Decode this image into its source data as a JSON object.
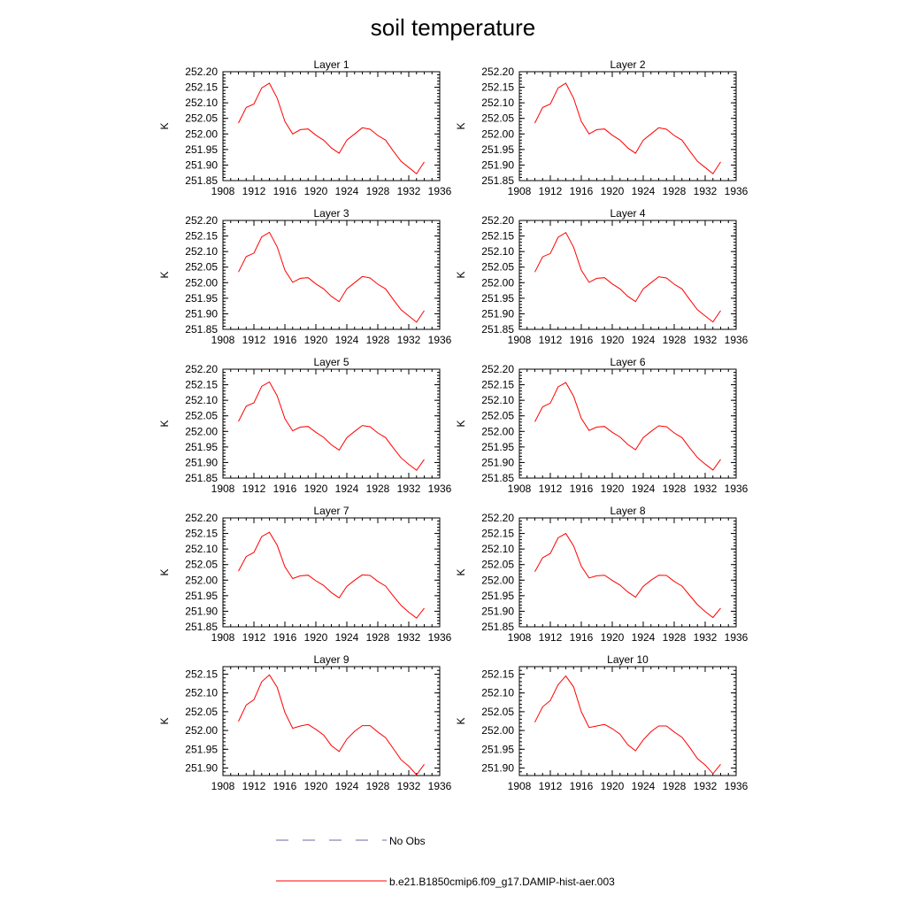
{
  "title": "soil temperature",
  "colors": {
    "model": "#ff0000",
    "obs": "#6a6aa8",
    "axis": "#000000"
  },
  "legend": {
    "obs_label": "No Obs",
    "model_label": "b.e21.B1850cmip6.f09_g17.DAMIP-hist-aer.003"
  },
  "chart_data": [
    {
      "type": "line",
      "title": "Layer 1",
      "ylabel": "K",
      "xlim": [
        1908,
        1936
      ],
      "xticks": [
        "1908",
        "1912",
        "1916",
        "1920",
        "1924",
        "1928",
        "1932",
        "1936"
      ],
      "ylim": [
        251.85,
        252.2
      ],
      "yticks": [
        "251.85",
        "251.90",
        "251.95",
        "252.00",
        "252.05",
        "252.10",
        "252.15",
        "252.20"
      ],
      "x": [
        1910,
        1911,
        1912,
        1913,
        1914,
        1915,
        1916,
        1917,
        1918,
        1919,
        1920,
        1921,
        1922,
        1923,
        1924,
        1925,
        1926,
        1927,
        1928,
        1929,
        1930,
        1931,
        1932,
        1933,
        1934
      ],
      "series": [
        {
          "name": "b.e21.B1850cmip6.f09_g17.DAMIP-hist-aer.003",
          "values": [
            252.035,
            252.085,
            252.096,
            252.148,
            252.163,
            252.115,
            252.04,
            252.0,
            252.014,
            252.016,
            251.996,
            251.98,
            251.955,
            251.938,
            251.98,
            252.0,
            252.02,
            252.015,
            251.995,
            251.98,
            251.945,
            251.912,
            251.892,
            251.872,
            251.91
          ]
        }
      ]
    },
    {
      "type": "line",
      "title": "Layer 2",
      "ylabel": "K",
      "xlim": [
        1908,
        1936
      ],
      "xticks": [
        "1908",
        "1912",
        "1916",
        "1920",
        "1924",
        "1928",
        "1932",
        "1936"
      ],
      "ylim": [
        251.85,
        252.2
      ],
      "yticks": [
        "251.85",
        "251.90",
        "251.95",
        "252.00",
        "252.05",
        "252.10",
        "252.15",
        "252.20"
      ],
      "x": [
        1910,
        1911,
        1912,
        1913,
        1914,
        1915,
        1916,
        1917,
        1918,
        1919,
        1920,
        1921,
        1922,
        1923,
        1924,
        1925,
        1926,
        1927,
        1928,
        1929,
        1930,
        1931,
        1932,
        1933,
        1934
      ],
      "series": [
        {
          "name": "b.e21.B1850cmip6.f09_g17.DAMIP-hist-aer.003",
          "values": [
            252.035,
            252.085,
            252.096,
            252.148,
            252.163,
            252.115,
            252.04,
            252.0,
            252.014,
            252.016,
            251.996,
            251.98,
            251.955,
            251.938,
            251.98,
            252.0,
            252.02,
            252.015,
            251.995,
            251.98,
            251.945,
            251.912,
            251.892,
            251.872,
            251.91
          ]
        }
      ]
    },
    {
      "type": "line",
      "title": "Layer 3",
      "ylabel": "K",
      "xlim": [
        1908,
        1936
      ],
      "xticks": [
        "1908",
        "1912",
        "1916",
        "1920",
        "1924",
        "1928",
        "1932",
        "1936"
      ],
      "ylim": [
        251.85,
        252.2
      ],
      "yticks": [
        "251.85",
        "251.90",
        "251.95",
        "252.00",
        "252.05",
        "252.10",
        "252.15",
        "252.20"
      ],
      "x": [
        1910,
        1911,
        1912,
        1913,
        1914,
        1915,
        1916,
        1917,
        1918,
        1919,
        1920,
        1921,
        1922,
        1923,
        1924,
        1925,
        1926,
        1927,
        1928,
        1929,
        1930,
        1931,
        1932,
        1933,
        1934
      ],
      "series": [
        {
          "name": "b.e21.B1850cmip6.f09_g17.DAMIP-hist-aer.003",
          "values": [
            252.034,
            252.084,
            252.095,
            252.147,
            252.162,
            252.115,
            252.04,
            252.001,
            252.014,
            252.016,
            251.996,
            251.98,
            251.956,
            251.939,
            251.98,
            252.0,
            252.02,
            252.015,
            251.995,
            251.98,
            251.946,
            251.913,
            251.893,
            251.873,
            251.91
          ]
        }
      ]
    },
    {
      "type": "line",
      "title": "Layer 4",
      "ylabel": "K",
      "xlim": [
        1908,
        1936
      ],
      "xticks": [
        "1908",
        "1912",
        "1916",
        "1920",
        "1924",
        "1928",
        "1932",
        "1936"
      ],
      "ylim": [
        251.85,
        252.2
      ],
      "yticks": [
        "251.85",
        "251.90",
        "251.95",
        "252.00",
        "252.05",
        "252.10",
        "252.15",
        "252.20"
      ],
      "x": [
        1910,
        1911,
        1912,
        1913,
        1914,
        1915,
        1916,
        1917,
        1918,
        1919,
        1920,
        1921,
        1922,
        1923,
        1924,
        1925,
        1926,
        1927,
        1928,
        1929,
        1930,
        1931,
        1932,
        1933,
        1934
      ],
      "series": [
        {
          "name": "b.e21.B1850cmip6.f09_g17.DAMIP-hist-aer.003",
          "values": [
            252.034,
            252.083,
            252.094,
            252.146,
            252.161,
            252.114,
            252.04,
            252.001,
            252.014,
            252.016,
            251.996,
            251.98,
            251.956,
            251.939,
            251.98,
            252.0,
            252.019,
            252.015,
            251.995,
            251.98,
            251.946,
            251.913,
            251.893,
            251.874,
            251.91
          ]
        }
      ]
    },
    {
      "type": "line",
      "title": "Layer 5",
      "ylabel": "K",
      "xlim": [
        1908,
        1936
      ],
      "xticks": [
        "1908",
        "1912",
        "1916",
        "1920",
        "1924",
        "1928",
        "1932",
        "1936"
      ],
      "ylim": [
        251.85,
        252.2
      ],
      "yticks": [
        "251.85",
        "251.90",
        "251.95",
        "252.00",
        "252.05",
        "252.10",
        "252.15",
        "252.20"
      ],
      "x": [
        1910,
        1911,
        1912,
        1913,
        1914,
        1915,
        1916,
        1917,
        1918,
        1919,
        1920,
        1921,
        1922,
        1923,
        1924,
        1925,
        1926,
        1927,
        1928,
        1929,
        1930,
        1931,
        1932,
        1933,
        1934
      ],
      "series": [
        {
          "name": "b.e21.B1850cmip6.f09_g17.DAMIP-hist-aer.003",
          "values": [
            252.032,
            252.081,
            252.092,
            252.145,
            252.159,
            252.114,
            252.041,
            252.002,
            252.014,
            252.016,
            251.997,
            251.981,
            251.957,
            251.94,
            251.98,
            252.0,
            252.019,
            252.015,
            251.995,
            251.98,
            251.947,
            251.915,
            251.894,
            251.875,
            251.91
          ]
        }
      ]
    },
    {
      "type": "line",
      "title": "Layer 6",
      "ylabel": "K",
      "xlim": [
        1908,
        1936
      ],
      "xticks": [
        "1908",
        "1912",
        "1916",
        "1920",
        "1924",
        "1928",
        "1932",
        "1936"
      ],
      "ylim": [
        251.85,
        252.2
      ],
      "yticks": [
        "251.85",
        "251.90",
        "251.95",
        "252.00",
        "252.05",
        "252.10",
        "252.15",
        "252.20"
      ],
      "x": [
        1910,
        1911,
        1912,
        1913,
        1914,
        1915,
        1916,
        1917,
        1918,
        1919,
        1920,
        1921,
        1922,
        1923,
        1924,
        1925,
        1926,
        1927,
        1928,
        1929,
        1930,
        1931,
        1932,
        1933,
        1934
      ],
      "series": [
        {
          "name": "b.e21.B1850cmip6.f09_g17.DAMIP-hist-aer.003",
          "values": [
            252.031,
            252.079,
            252.091,
            252.143,
            252.157,
            252.113,
            252.042,
            252.003,
            252.014,
            252.016,
            251.997,
            251.982,
            251.958,
            251.941,
            251.98,
            252.0,
            252.018,
            252.015,
            251.995,
            251.98,
            251.947,
            251.916,
            251.895,
            251.876,
            251.91
          ]
        }
      ]
    },
    {
      "type": "line",
      "title": "Layer 7",
      "ylabel": "K",
      "xlim": [
        1908,
        1936
      ],
      "xticks": [
        "1908",
        "1912",
        "1916",
        "1920",
        "1924",
        "1928",
        "1932",
        "1936"
      ],
      "ylim": [
        251.85,
        252.2
      ],
      "yticks": [
        "251.85",
        "251.90",
        "251.95",
        "252.00",
        "252.05",
        "252.10",
        "252.15",
        "252.20"
      ],
      "x": [
        1910,
        1911,
        1912,
        1913,
        1914,
        1915,
        1916,
        1917,
        1918,
        1919,
        1920,
        1921,
        1922,
        1923,
        1924,
        1925,
        1926,
        1927,
        1928,
        1929,
        1930,
        1931,
        1932,
        1933,
        1934
      ],
      "series": [
        {
          "name": "b.e21.B1850cmip6.f09_g17.DAMIP-hist-aer.003",
          "values": [
            252.029,
            252.076,
            252.089,
            252.14,
            252.154,
            252.112,
            252.043,
            252.005,
            252.014,
            252.016,
            251.998,
            251.983,
            251.96,
            251.943,
            251.98,
            252.0,
            252.017,
            252.015,
            251.996,
            251.981,
            251.949,
            251.919,
            251.897,
            251.878,
            251.91
          ]
        }
      ]
    },
    {
      "type": "line",
      "title": "Layer 8",
      "ylabel": "K",
      "xlim": [
        1908,
        1936
      ],
      "xticks": [
        "1908",
        "1912",
        "1916",
        "1920",
        "1924",
        "1928",
        "1932",
        "1936"
      ],
      "ylim": [
        251.85,
        252.2
      ],
      "yticks": [
        "251.85",
        "251.90",
        "251.95",
        "252.00",
        "252.05",
        "252.10",
        "252.15",
        "252.20"
      ],
      "x": [
        1910,
        1911,
        1912,
        1913,
        1914,
        1915,
        1916,
        1917,
        1918,
        1919,
        1920,
        1921,
        1922,
        1923,
        1924,
        1925,
        1926,
        1927,
        1928,
        1929,
        1930,
        1931,
        1932,
        1933,
        1934
      ],
      "series": [
        {
          "name": "b.e21.B1850cmip6.f09_g17.DAMIP-hist-aer.003",
          "values": [
            252.027,
            252.072,
            252.086,
            252.136,
            252.15,
            252.11,
            252.045,
            252.007,
            252.014,
            252.016,
            251.999,
            251.984,
            251.962,
            251.945,
            251.98,
            252.0,
            252.016,
            252.015,
            251.996,
            251.981,
            251.951,
            251.921,
            251.899,
            251.88,
            251.91
          ]
        }
      ]
    },
    {
      "type": "line",
      "title": "Layer 9",
      "ylabel": "K",
      "xlim": [
        1908,
        1936
      ],
      "xticks": [
        "1908",
        "1912",
        "1916",
        "1920",
        "1924",
        "1928",
        "1932",
        "1936"
      ],
      "ylim": [
        251.88,
        252.17
      ],
      "yticks": [
        "251.90",
        "251.95",
        "252.00",
        "252.05",
        "252.10",
        "252.15"
      ],
      "x": [
        1910,
        1911,
        1912,
        1913,
        1914,
        1915,
        1916,
        1917,
        1918,
        1919,
        1920,
        1921,
        1922,
        1923,
        1924,
        1925,
        1926,
        1927,
        1928,
        1929,
        1930,
        1931,
        1932,
        1933,
        1934
      ],
      "series": [
        {
          "name": "b.e21.B1850cmip6.f09_g17.DAMIP-hist-aer.003",
          "values": [
            252.024,
            252.068,
            252.082,
            252.13,
            252.148,
            252.115,
            252.048,
            252.006,
            252.012,
            252.016,
            252.003,
            251.988,
            251.96,
            251.944,
            251.977,
            251.998,
            252.013,
            252.013,
            251.996,
            251.981,
            251.952,
            251.922,
            251.905,
            251.882,
            251.91
          ]
        }
      ]
    },
    {
      "type": "line",
      "title": "Layer 10",
      "ylabel": "K",
      "xlim": [
        1908,
        1936
      ],
      "xticks": [
        "1908",
        "1912",
        "1916",
        "1920",
        "1924",
        "1928",
        "1932",
        "1936"
      ],
      "ylim": [
        251.88,
        252.17
      ],
      "yticks": [
        "251.90",
        "251.95",
        "252.00",
        "252.05",
        "252.10",
        "252.15"
      ],
      "x": [
        1910,
        1911,
        1912,
        1913,
        1914,
        1915,
        1916,
        1917,
        1918,
        1919,
        1920,
        1921,
        1922,
        1923,
        1924,
        1925,
        1926,
        1927,
        1928,
        1929,
        1930,
        1931,
        1932,
        1933,
        1934
      ],
      "series": [
        {
          "name": "b.e21.B1850cmip6.f09_g17.DAMIP-hist-aer.003",
          "values": [
            252.022,
            252.063,
            252.08,
            252.122,
            252.145,
            252.116,
            252.05,
            252.008,
            252.012,
            252.016,
            252.005,
            251.99,
            251.962,
            251.946,
            251.975,
            251.997,
            252.012,
            252.012,
            251.996,
            251.982,
            251.955,
            251.925,
            251.908,
            251.885,
            251.91
          ]
        }
      ]
    }
  ]
}
